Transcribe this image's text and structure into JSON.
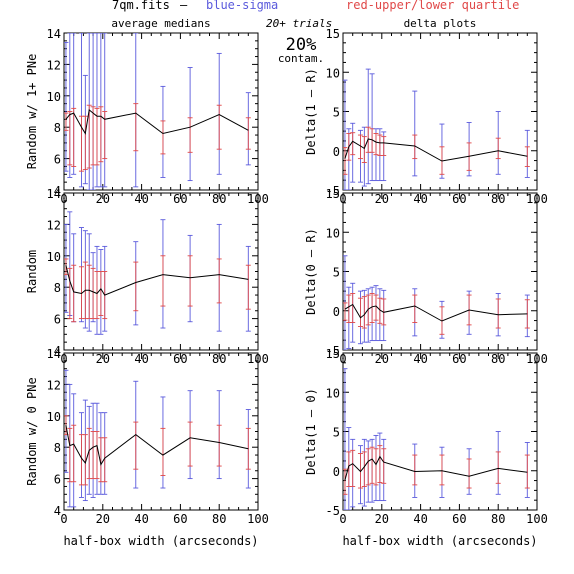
{
  "header": {
    "file_label": "7qm.fits",
    "dash": "–",
    "sigma_label": "blue-sigma",
    "quartile_label": "red-upper/lower quartile",
    "trials_label": "20+ trials",
    "contam_value": "20%",
    "contam_label": "contam.",
    "colors": {
      "sigma": "#5a5adc",
      "quartile": "#e04848",
      "median": "#000000"
    }
  },
  "columns": {
    "left_title": "average medians",
    "right_title": "delta plots"
  },
  "xaxis_label": "half-box width (arcseconds)",
  "chart_data": [
    {
      "type": "line",
      "id": "avg-1plus",
      "ylabel": "Random w/ 1+ PNe",
      "xlim": [
        0,
        100
      ],
      "ylim": [
        4,
        14
      ],
      "xticks": [
        0,
        20,
        40,
        60,
        80,
        100
      ],
      "yticks": [
        4,
        6,
        8,
        10,
        12,
        14
      ],
      "x": [
        1,
        3,
        5,
        9,
        11,
        13,
        15,
        17,
        19,
        21,
        37,
        51,
        65,
        80,
        95
      ],
      "median": [
        8.5,
        8.8,
        8.9,
        8.0,
        7.6,
        9.1,
        8.9,
        8.7,
        8.7,
        8.5,
        8.9,
        7.6,
        8.0,
        8.8,
        7.8
      ],
      "sigma": [
        [
          5.2,
          13.4
        ],
        [
          4.8,
          14
        ],
        [
          5.0,
          14
        ],
        [
          4.2,
          14
        ],
        [
          4.4,
          11.3
        ],
        [
          4.0,
          14
        ],
        [
          4.0,
          14
        ],
        [
          4.2,
          14
        ],
        [
          4.2,
          14
        ],
        [
          4.2,
          14
        ],
        [
          4.2,
          14
        ],
        [
          4.8,
          10.6
        ],
        [
          4.6,
          11.8
        ],
        [
          5.0,
          12.7
        ],
        [
          5.6,
          10.2
        ]
      ],
      "quartile": [
        [
          7.8,
          8.9
        ],
        [
          5.6,
          9.0
        ],
        [
          5.5,
          9.2
        ],
        [
          5.2,
          8.7
        ],
        [
          5.3,
          8.7
        ],
        [
          5.4,
          9.4
        ],
        [
          5.6,
          9.3
        ],
        [
          5.6,
          9.2
        ],
        [
          5.8,
          9.3
        ],
        [
          6.0,
          9.0
        ],
        [
          6.5,
          9.5
        ],
        [
          6.3,
          8.4
        ],
        [
          6.4,
          8.6
        ],
        [
          6.6,
          9.4
        ],
        [
          6.6,
          8.6
        ]
      ]
    },
    {
      "type": "line",
      "id": "delta-1-R",
      "ylabel": "Delta(1 – R)",
      "xlim": [
        0,
        100
      ],
      "ylim": [
        -5,
        15
      ],
      "xticks": [
        0,
        20,
        40,
        60,
        80,
        100
      ],
      "yticks": [
        -5,
        0,
        5,
        10,
        15
      ],
      "x": [
        1,
        3,
        5,
        9,
        11,
        13,
        15,
        17,
        19,
        21,
        37,
        51,
        65,
        80,
        95
      ],
      "median": [
        -1.0,
        0.5,
        1.2,
        0.6,
        0.3,
        1.5,
        1.4,
        1.1,
        1.0,
        1.0,
        0.6,
        -1.3,
        -0.7,
        0.0,
        -0.7
      ],
      "sigma": [
        [
          -5,
          9.0
        ],
        [
          -5,
          2.8
        ],
        [
          -4.0,
          3.5
        ],
        [
          -4.0,
          2.6
        ],
        [
          -4.5,
          3.0
        ],
        [
          -4.2,
          10.4
        ],
        [
          -3.8,
          9.8
        ],
        [
          -3.8,
          2.8
        ],
        [
          -3.8,
          2.8
        ],
        [
          -3.8,
          2.4
        ],
        [
          -3.2,
          7.6
        ],
        [
          -3.5,
          3.4
        ],
        [
          -3.2,
          3.6
        ],
        [
          -3.0,
          5.0
        ],
        [
          -3.4,
          2.6
        ]
      ],
      "quartile": [
        [
          -3.0,
          0.4
        ],
        [
          -1.2,
          2.2
        ],
        [
          -0.5,
          2.3
        ],
        [
          -1.0,
          2.0
        ],
        [
          -1.5,
          1.8
        ],
        [
          -0.2,
          3.0
        ],
        [
          -0.2,
          2.8
        ],
        [
          -0.5,
          2.2
        ],
        [
          -0.6,
          2.0
        ],
        [
          -0.6,
          1.8
        ],
        [
          -1.0,
          2.0
        ],
        [
          -3.0,
          0.5
        ],
        [
          -2.5,
          1.0
        ],
        [
          -1.0,
          1.6
        ],
        [
          -2.0,
          0.5
        ]
      ]
    },
    {
      "type": "line",
      "id": "avg-random",
      "ylabel": "Random",
      "xlim": [
        0,
        100
      ],
      "ylim": [
        4,
        14
      ],
      "xticks": [
        0,
        20,
        40,
        60,
        80,
        100
      ],
      "yticks": [
        4,
        6,
        8,
        10,
        12,
        14
      ],
      "x": [
        1,
        3,
        5,
        9,
        11,
        13,
        15,
        17,
        19,
        21,
        37,
        51,
        65,
        80,
        95
      ],
      "median": [
        9.4,
        8.4,
        7.7,
        7.6,
        7.8,
        7.8,
        7.7,
        7.6,
        7.9,
        7.5,
        8.3,
        8.8,
        8.6,
        8.8,
        8.5
      ],
      "sigma": [
        [
          6.4,
          12.0
        ],
        [
          6.2,
          12.8
        ],
        [
          5.8,
          11.4
        ],
        [
          5.8,
          11.8
        ],
        [
          5.4,
          11.6
        ],
        [
          5.2,
          11.4
        ],
        [
          5.8,
          10.2
        ],
        [
          5.0,
          10.6
        ],
        [
          5.0,
          10.4
        ],
        [
          5.2,
          10.6
        ],
        [
          5.6,
          10.9
        ],
        [
          5.4,
          12.3
        ],
        [
          5.8,
          11.3
        ],
        [
          5.2,
          12.0
        ],
        [
          5.2,
          10.6
        ]
      ],
      "quartile": [
        [
          8.8,
          9.8
        ],
        [
          6.0,
          9.2
        ],
        [
          5.8,
          9.4
        ],
        [
          6.0,
          9.3
        ],
        [
          6.0,
          9.6
        ],
        [
          6.0,
          9.4
        ],
        [
          6.0,
          9.2
        ],
        [
          6.0,
          9.0
        ],
        [
          6.2,
          9.0
        ],
        [
          6.0,
          9.0
        ],
        [
          6.5,
          9.6
        ],
        [
          6.8,
          10.0
        ],
        [
          6.8,
          10.0
        ],
        [
          7.0,
          9.8
        ],
        [
          6.6,
          9.4
        ]
      ]
    },
    {
      "type": "line",
      "id": "delta-0-R",
      "ylabel": "Delta(0 – R)",
      "xlim": [
        0,
        100
      ],
      "ylim": [
        -5,
        15
      ],
      "xticks": [
        0,
        20,
        40,
        60,
        80,
        100
      ],
      "yticks": [
        -5,
        0,
        5,
        10,
        15
      ],
      "x": [
        1,
        3,
        5,
        9,
        11,
        13,
        15,
        17,
        19,
        21,
        37,
        51,
        65,
        80,
        95
      ],
      "median": [
        0.2,
        0.5,
        0.8,
        -0.9,
        -0.5,
        0.2,
        0.5,
        0.6,
        0.1,
        -0.2,
        0.6,
        -1.3,
        0.1,
        -0.5,
        -0.4
      ],
      "sigma": [
        [
          -5,
          7.0
        ],
        [
          -4.8,
          3.0
        ],
        [
          -4.0,
          3.5
        ],
        [
          -4.2,
          2.5
        ],
        [
          -4.0,
          2.6
        ],
        [
          -4.0,
          2.8
        ],
        [
          -3.8,
          3.0
        ],
        [
          -3.8,
          3.2
        ],
        [
          -3.8,
          2.8
        ],
        [
          -3.8,
          2.6
        ],
        [
          -3.2,
          2.8
        ],
        [
          -3.5,
          1.2
        ],
        [
          -3.0,
          2.5
        ],
        [
          -3.2,
          2.2
        ],
        [
          -3.3,
          2.0
        ]
      ],
      "quartile": [
        [
          -1.2,
          1.0
        ],
        [
          -1.5,
          2.0
        ],
        [
          -1.5,
          2.2
        ],
        [
          -2.0,
          1.6
        ],
        [
          -2.2,
          1.8
        ],
        [
          -1.8,
          2.0
        ],
        [
          -1.5,
          2.2
        ],
        [
          -1.2,
          2.0
        ],
        [
          -1.6,
          1.6
        ],
        [
          -1.8,
          1.5
        ],
        [
          -1.5,
          2.0
        ],
        [
          -3.0,
          0.5
        ],
        [
          -1.8,
          2.0
        ],
        [
          -2.2,
          1.5
        ],
        [
          -2.2,
          1.4
        ]
      ]
    },
    {
      "type": "line",
      "id": "avg-0pne",
      "ylabel": "Random w/ 0 PNe",
      "xlim": [
        0,
        100
      ],
      "ylim": [
        4,
        14
      ],
      "xticks": [
        0,
        20,
        40,
        60,
        80,
        100
      ],
      "yticks": [
        4,
        6,
        8,
        10,
        12,
        14
      ],
      "x": [
        1,
        3,
        5,
        9,
        11,
        13,
        15,
        17,
        19,
        21,
        37,
        51,
        65,
        80,
        95
      ],
      "median": [
        9.4,
        8.1,
        8.2,
        7.3,
        7.0,
        7.8,
        8.0,
        8.1,
        6.9,
        7.3,
        8.8,
        7.5,
        8.6,
        8.3,
        7.9
      ],
      "sigma": [
        [
          6.4,
          12.9
        ],
        [
          4.2,
          12.0
        ],
        [
          4.2,
          11.4
        ],
        [
          4.8,
          10.2
        ],
        [
          4.6,
          11.0
        ],
        [
          5.0,
          10.6
        ],
        [
          4.8,
          10.8
        ],
        [
          5.0,
          10.8
        ],
        [
          5.0,
          10.2
        ],
        [
          5.0,
          10.2
        ],
        [
          5.4,
          12.2
        ],
        [
          5.4,
          11.2
        ],
        [
          6.0,
          11.6
        ],
        [
          6.0,
          11.6
        ],
        [
          5.4,
          10.4
        ]
      ],
      "quartile": [
        [
          8.8,
          10.0
        ],
        [
          5.8,
          9.2
        ],
        [
          5.8,
          9.4
        ],
        [
          5.6,
          8.8
        ],
        [
          5.6,
          8.8
        ],
        [
          6.0,
          9.2
        ],
        [
          6.0,
          9.0
        ],
        [
          6.0,
          9.0
        ],
        [
          5.8,
          8.6
        ],
        [
          5.8,
          8.6
        ],
        [
          6.6,
          9.6
        ],
        [
          6.2,
          9.2
        ],
        [
          6.8,
          9.6
        ],
        [
          6.8,
          9.4
        ],
        [
          6.6,
          9.2
        ]
      ]
    },
    {
      "type": "line",
      "id": "delta-1-0",
      "ylabel": "Delta(1 – 0)",
      "xlim": [
        0,
        100
      ],
      "ylim": [
        -5,
        15
      ],
      "xticks": [
        0,
        20,
        40,
        60,
        80,
        100
      ],
      "yticks": [
        -5,
        0,
        5,
        10,
        15
      ],
      "x": [
        1,
        3,
        5,
        9,
        11,
        13,
        15,
        17,
        19,
        21,
        37,
        51,
        65,
        80,
        95
      ],
      "median": [
        -1.2,
        0.6,
        0.9,
        -0.1,
        0.5,
        1.2,
        1.5,
        0.8,
        1.8,
        1.1,
        -0.1,
        0.0,
        -0.7,
        0.3,
        -0.2
      ],
      "sigma": [
        [
          -5,
          13.0
        ],
        [
          -5,
          5.5
        ],
        [
          -4.6,
          4.0
        ],
        [
          -4.2,
          3.2
        ],
        [
          -4.5,
          4.0
        ],
        [
          -4.0,
          3.8
        ],
        [
          -4.0,
          4.0
        ],
        [
          -3.8,
          4.5
        ],
        [
          -3.8,
          4.8
        ],
        [
          -3.8,
          4.0
        ],
        [
          -3.4,
          3.4
        ],
        [
          -3.4,
          3.0
        ],
        [
          -3.0,
          2.8
        ],
        [
          -3.0,
          5.0
        ],
        [
          -3.4,
          3.6
        ]
      ],
      "quartile": [
        [
          -3.0,
          0.2
        ],
        [
          -2.0,
          2.4
        ],
        [
          -2.0,
          2.6
        ],
        [
          -2.2,
          2.2
        ],
        [
          -2.0,
          2.4
        ],
        [
          -1.8,
          2.8
        ],
        [
          -1.6,
          3.0
        ],
        [
          -1.8,
          2.8
        ],
        [
          -1.5,
          3.2
        ],
        [
          -1.6,
          2.8
        ],
        [
          -1.8,
          2.0
        ],
        [
          -1.8,
          2.0
        ],
        [
          -2.2,
          1.5
        ],
        [
          -1.6,
          2.4
        ],
        [
          -2.2,
          2.0
        ]
      ]
    }
  ]
}
